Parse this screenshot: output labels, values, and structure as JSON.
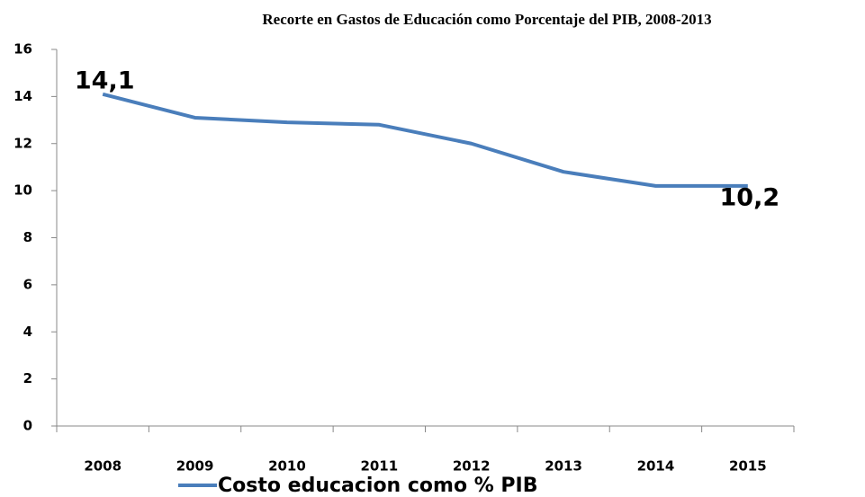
{
  "chart_data": {
    "type": "line",
    "title": "Recorte en Gastos de Educación como Porcentaje del PIB, 2008-2013",
    "categories": [
      "2008",
      "2009",
      "2010",
      "2011",
      "2012",
      "2013",
      "2014",
      "2015"
    ],
    "series": [
      {
        "name": "Costo educacion como % PIB",
        "color": "#4a7ebb",
        "values": [
          14.1,
          13.1,
          12.9,
          12.8,
          12.0,
          10.8,
          10.2,
          10.2
        ],
        "value_labels": [
          "14,1",
          null,
          null,
          null,
          null,
          null,
          null,
          "10,2"
        ]
      }
    ],
    "ylim": [
      0,
      16
    ],
    "yticks": [
      0,
      2,
      4,
      6,
      8,
      10,
      12,
      14,
      16
    ],
    "legend": "bottom",
    "grid": false
  }
}
